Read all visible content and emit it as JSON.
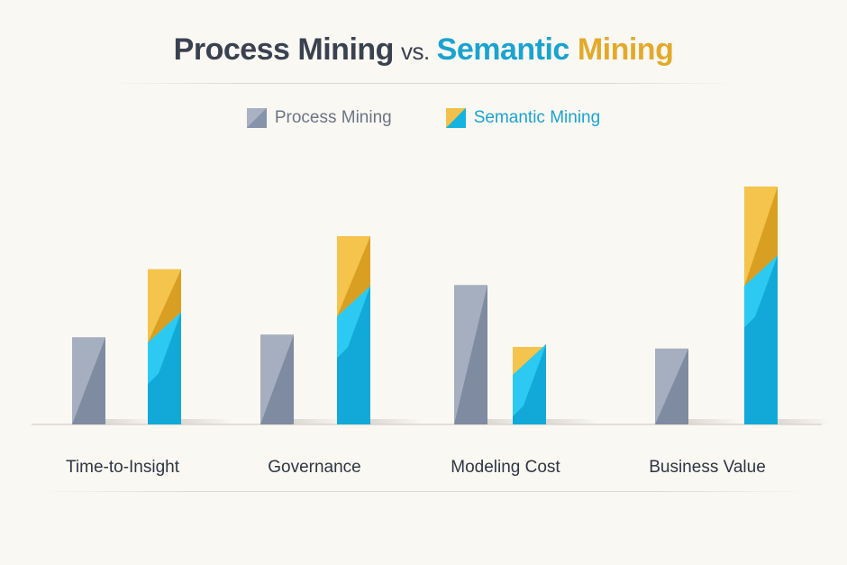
{
  "title": {
    "part1": "Process Mining",
    "vs": "vs.",
    "part2": "Semantic",
    "part3": "Mining"
  },
  "legend": {
    "process": "Process Mining",
    "semantic": "Semantic Mining"
  },
  "colors": {
    "process_light": "#a6afbf",
    "process_dark": "#7f8ba0",
    "semantic_blue": "#12a9d8",
    "semantic_blue_light": "#2ccaf2",
    "semantic_gold": "#f4c44c",
    "semantic_gold_dark": "#d99f22"
  },
  "chart_data": {
    "type": "bar",
    "title": "Process Mining vs. Semantic Mining",
    "categories": [
      "Time-to-Insight",
      "Governance",
      "Modeling Cost",
      "Business Value"
    ],
    "series": [
      {
        "name": "Process Mining",
        "values": [
          100,
          103,
          160,
          87
        ]
      },
      {
        "name": "Semantic Mining",
        "values": [
          178,
          216,
          89,
          273
        ],
        "blue_portion": [
          100,
          130,
          63,
          165
        ]
      }
    ],
    "ylim": [
      0,
      300
    ],
    "xlabel": "",
    "ylabel": "",
    "grid": false,
    "legend": "top-center"
  }
}
